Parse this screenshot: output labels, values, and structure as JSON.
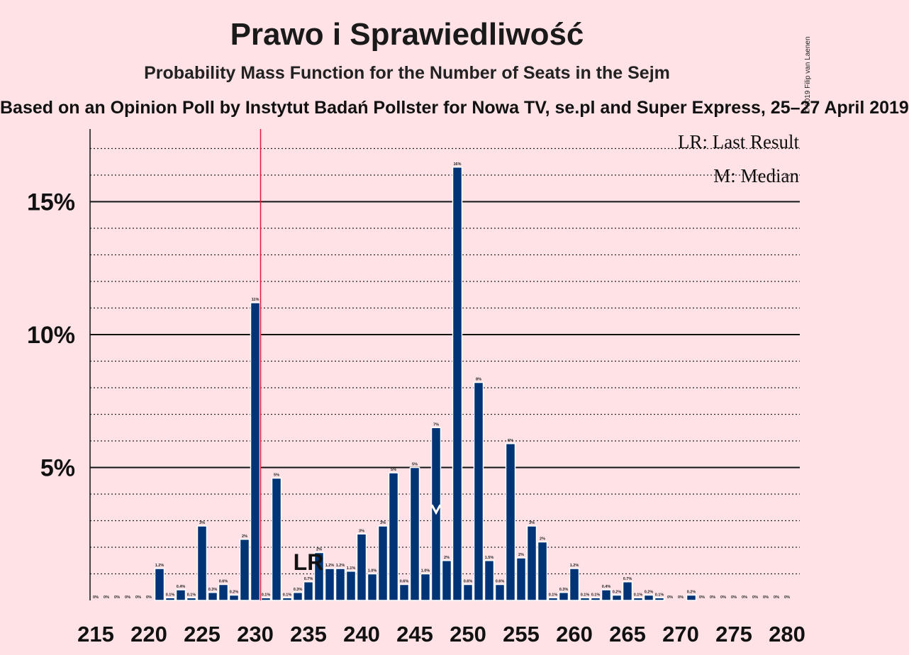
{
  "header": {
    "title": "Prawo i Sprawiedliwość",
    "subtitle": "Probability Mass Function for the Number of Seats in the Sejm",
    "source": "Based on an Opinion Poll by Instytut Badań Pollster for Nowa TV, se.pl and Super Express, 25–27 April 2019",
    "copyright": "© 2019 Filip van Laenen"
  },
  "chart_data": {
    "type": "bar",
    "title": "Prawo i Sprawiedliwość",
    "x": [
      215,
      216,
      217,
      218,
      219,
      220,
      221,
      222,
      223,
      224,
      225,
      226,
      227,
      228,
      229,
      230,
      231,
      232,
      233,
      234,
      235,
      236,
      237,
      238,
      239,
      240,
      241,
      242,
      243,
      244,
      245,
      246,
      247,
      248,
      249,
      250,
      251,
      252,
      253,
      254,
      255,
      256,
      257,
      258,
      259,
      260,
      261,
      262,
      263,
      264,
      265,
      266,
      267,
      268,
      269,
      270,
      271,
      272,
      273,
      274,
      275,
      276,
      277,
      278,
      279,
      280
    ],
    "values": [
      0,
      0,
      0,
      0,
      0,
      0,
      1.2,
      0.1,
      0.4,
      0.1,
      2.8,
      0.3,
      0.6,
      0.2,
      2.3,
      11.2,
      0.1,
      4.6,
      0.1,
      0.3,
      0.7,
      1.8,
      1.2,
      1.2,
      1.1,
      2.5,
      1.0,
      2.8,
      4.8,
      0.6,
      5.0,
      1.0,
      6.5,
      1.5,
      16.3,
      0.6,
      8.2,
      1.5,
      0.6,
      5.9,
      1.6,
      2.8,
      2.2,
      0.1,
      0.3,
      1.2,
      0.1,
      0.1,
      0.4,
      0.2,
      0.7,
      0.1,
      0.2,
      0.1,
      0,
      0,
      0.2,
      0,
      0,
      0,
      0,
      0,
      0,
      0,
      0,
      0
    ],
    "labels": [
      "0%",
      "0%",
      "0%",
      "0%",
      "0%",
      "0%",
      "1.2%",
      "0.1%",
      "0.4%",
      "0.1%",
      "3%",
      "0.3%",
      "0.6%",
      "0.2%",
      "2%",
      "11%",
      "0.1%",
      "5%",
      "0.1%",
      "0.3%",
      "0.7%",
      "2%",
      "1.2%",
      "1.2%",
      "1.1%",
      "3%",
      "1.0%",
      "3%",
      "5%",
      "0.6%",
      "5%",
      "1.0%",
      "7%",
      "2%",
      "16%",
      "0.6%",
      "8%",
      "1.5%",
      "0.6%",
      "6%",
      "2%",
      "3%",
      "2%",
      "0.1%",
      "0.3%",
      "1.2%",
      "0.1%",
      "0.1%",
      "0.4%",
      "0.2%",
      "0.7%",
      "0.1%",
      "0.2%",
      "0.1%",
      "0%",
      "0%",
      "0.2%",
      "0%",
      "0%",
      "0%",
      "0%",
      "0%",
      "0%",
      "0%",
      "0%",
      "0%"
    ],
    "x_ticks": [
      215,
      220,
      225,
      230,
      235,
      240,
      245,
      250,
      255,
      260,
      265,
      270,
      275,
      280
    ],
    "x_tick_labels": [
      "215",
      "220",
      "225",
      "230",
      "235",
      "240",
      "245",
      "250",
      "255",
      "260",
      "265",
      "270",
      "275",
      "280"
    ],
    "y_ticks": [
      5,
      10,
      15
    ],
    "y_tick_labels": [
      "5%",
      "10%",
      "15%"
    ],
    "ylim": [
      0,
      17.8
    ],
    "grid": true,
    "majority_line": 230.5,
    "last_result": {
      "x": 235,
      "label": "LR"
    },
    "median": {
      "x": 247
    },
    "legend": {
      "placement": "top-right",
      "items": [
        "LR: Last Result",
        "M: Median"
      ]
    },
    "colors": {
      "bar": "#003476",
      "majority": "#E0193C",
      "background": "#FFE2E6",
      "median_marker": "#FFFFFF"
    }
  }
}
